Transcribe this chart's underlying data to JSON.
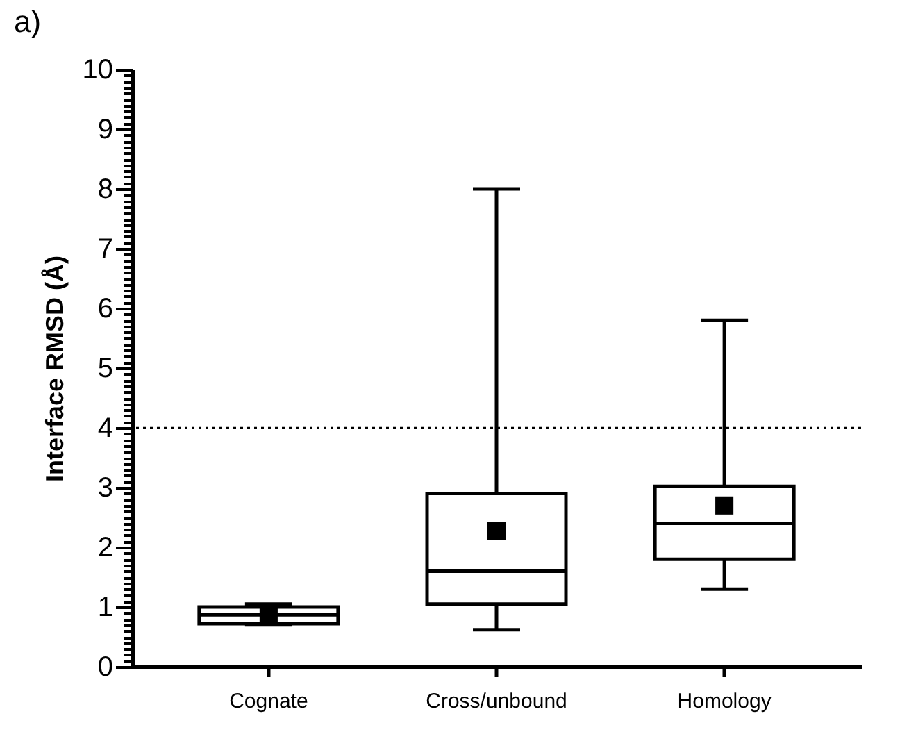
{
  "chart_data": {
    "type": "box",
    "title": "a)",
    "ylabel": "Interface RMSD (Å)",
    "categories": [
      "Cognate",
      "Cross/unbound",
      "Homology"
    ],
    "boxes": [
      {
        "low": 0.7,
        "q1": 0.72,
        "median": 0.87,
        "q3": 1.0,
        "high": 1.05,
        "mean": 0.88
      },
      {
        "low": 0.62,
        "q1": 1.05,
        "median": 1.6,
        "q3": 2.9,
        "high": 8.0,
        "mean": 2.27
      },
      {
        "low": 1.3,
        "q1": 1.8,
        "median": 2.4,
        "q3": 3.02,
        "high": 5.8,
        "mean": 2.7
      }
    ],
    "ylim": [
      0,
      10
    ],
    "yticks": [
      0,
      {
        "value": 0.1,
        "label": null
      },
      {
        "value": 0.2,
        "label": null
      },
      {
        "value": 0.3,
        "label": null
      },
      {
        "value": 0.4,
        "label": null
      },
      {
        "value": 0.5,
        "label": null
      },
      {
        "value": 0.6,
        "label": null
      },
      {
        "value": 0.7,
        "label": null
      },
      {
        "value": 0.8,
        "label": null
      },
      {
        "value": 0.9,
        "label": null
      },
      1,
      {
        "value": 1.1,
        "label": null
      },
      {
        "value": 1.2,
        "label": null
      },
      {
        "value": 1.3,
        "label": null
      },
      {
        "value": 1.4,
        "label": null
      },
      {
        "value": 1.5,
        "label": null
      },
      {
        "value": 1.6,
        "label": null
      },
      {
        "value": 1.7,
        "label": null
      },
      {
        "value": 1.8,
        "label": null
      },
      {
        "value": 1.9,
        "label": null
      },
      2,
      {
        "value": 2.1,
        "label": null
      },
      {
        "value": 2.2,
        "label": null
      },
      {
        "value": 2.3,
        "label": null
      },
      {
        "value": 2.4,
        "label": null
      },
      {
        "value": 2.5,
        "label": null
      },
      {
        "value": 2.6,
        "label": null
      },
      {
        "value": 2.7,
        "label": null
      },
      {
        "value": 2.8,
        "label": null
      },
      {
        "value": 2.9,
        "label": null
      },
      3,
      {
        "value": 3.1,
        "label": null
      },
      {
        "value": 3.2,
        "label": null
      },
      {
        "value": 3.3,
        "label": null
      },
      {
        "value": 3.4,
        "label": null
      },
      {
        "value": 3.5,
        "label": null
      },
      {
        "value": 3.6,
        "label": null
      },
      {
        "value": 3.7,
        "label": null
      },
      {
        "value": 3.8,
        "label": null
      },
      {
        "value": 3.9,
        "label": null
      },
      4,
      {
        "value": 4.1,
        "label": null
      },
      {
        "value": 4.2,
        "label": null
      },
      {
        "value": 4.3,
        "label": null
      },
      {
        "value": 4.4,
        "label": null
      },
      {
        "value": 4.5,
        "label": null
      },
      {
        "value": 4.6,
        "label": null
      },
      {
        "value": 4.7,
        "label": null
      },
      {
        "value": 4.8,
        "label": null
      },
      {
        "value": 4.9,
        "label": null
      },
      5,
      {
        "value": 5.1,
        "label": null
      },
      {
        "value": 5.2,
        "label": null
      },
      {
        "value": 5.3,
        "label": null
      },
      {
        "value": 5.4,
        "label": null
      },
      {
        "value": 5.5,
        "label": null
      },
      {
        "value": 5.6,
        "label": null
      },
      {
        "value": 5.7,
        "label": null
      },
      {
        "value": 5.8,
        "label": null
      },
      {
        "value": 5.9,
        "label": null
      },
      6,
      {
        "value": 6.1,
        "label": null
      },
      {
        "value": 6.2,
        "label": null
      },
      {
        "value": 6.3,
        "label": null
      },
      {
        "value": 6.4,
        "label": null
      },
      {
        "value": 6.5,
        "label": null
      },
      {
        "value": 6.6,
        "label": null
      },
      {
        "value": 6.7,
        "label": null
      },
      {
        "value": 6.8,
        "label": null
      },
      {
        "value": 6.9,
        "label": null
      },
      7,
      {
        "value": 7.1,
        "label": null
      },
      {
        "value": 7.2,
        "label": null
      },
      {
        "value": 7.3,
        "label": null
      },
      {
        "value": 7.4,
        "label": null
      },
      {
        "value": 7.5,
        "label": null
      },
      {
        "value": 7.6,
        "label": null
      },
      {
        "value": 7.7,
        "label": null
      },
      {
        "value": 7.8,
        "label": null
      },
      {
        "value": 7.9,
        "label": null
      },
      8,
      {
        "value": 8.1,
        "label": null
      },
      {
        "value": 8.2,
        "label": null
      },
      {
        "value": 8.3,
        "label": null
      },
      {
        "value": 8.4,
        "label": null
      },
      {
        "value": 8.5,
        "label": null
      },
      {
        "value": 8.6,
        "label": null
      },
      {
        "value": 8.7,
        "label": null
      },
      {
        "value": 8.8,
        "label": null
      },
      {
        "value": 8.9,
        "label": null
      },
      9,
      {
        "value": 9.1,
        "label": null
      },
      {
        "value": 9.2,
        "label": null
      },
      {
        "value": 9.3,
        "label": null
      },
      {
        "value": 9.4,
        "label": null
      },
      {
        "value": 9.5,
        "label": null
      },
      {
        "value": 9.6,
        "label": null
      },
      {
        "value": 9.7,
        "label": null
      },
      {
        "value": 9.8,
        "label": null
      },
      {
        "value": 9.9,
        "label": null
      },
      10
    ],
    "ref_lines": [
      {
        "axis": "y",
        "value": 4,
        "line_style": "dotted",
        "color": "#000000"
      }
    ],
    "color": "#000000",
    "marker": "square"
  }
}
